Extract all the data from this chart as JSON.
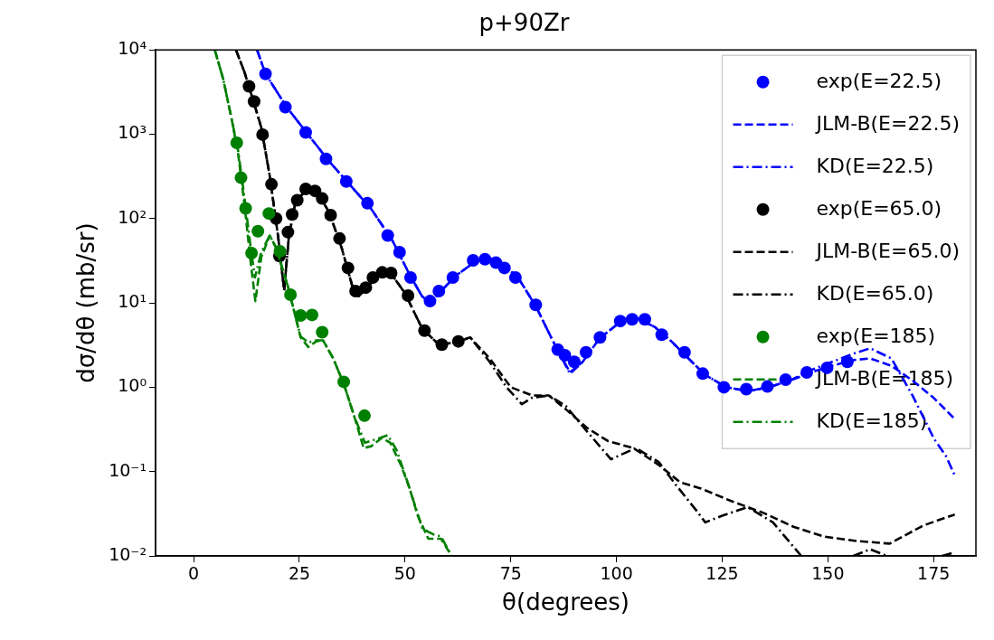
{
  "chart_data": {
    "type": "line",
    "title": "p+90Zr",
    "xlabel": "θ(degrees)",
    "ylabel": "dσ/dθ (mb/sr)",
    "log": "y",
    "legend": "top right",
    "xlim": [
      -9,
      185
    ],
    "xticks": [
      0,
      25,
      50,
      75,
      100,
      125,
      150,
      175
    ],
    "ylim": [
      0.01,
      10000
    ],
    "yticks": [
      {
        "value": 0.01,
        "label": "10⁻²"
      },
      {
        "value": 0.1,
        "label": "10⁻¹"
      },
      {
        "value": 1,
        "label": "10⁰"
      },
      {
        "value": 10,
        "label": "10¹"
      },
      {
        "value": 100,
        "label": "10²"
      },
      {
        "value": 1000,
        "label": "10³"
      },
      {
        "value": 10000,
        "label": "10⁴"
      }
    ],
    "series": [
      {
        "name": "exp(E=22.5)",
        "type": "scatter",
        "marker": "circle",
        "color": "#0000ff",
        "x": [
          17.0,
          21.7,
          26.5,
          31.3,
          36.1,
          41.1,
          45.9,
          48.7,
          51.3,
          55.9,
          58.0,
          61.3,
          66.1,
          68.9,
          71.5,
          73.5,
          76.1,
          80.9,
          86.1,
          87.8,
          90.0,
          92.8,
          96.1,
          100.9,
          103.7,
          106.7,
          110.7,
          116.1,
          120.4,
          125.4,
          130.7,
          135.7,
          140.0,
          145.0,
          149.8,
          154.6
        ],
        "values": [
          5200,
          2100,
          1050,
          510,
          275,
          152,
          63,
          40,
          20,
          10.5,
          13.8,
          20,
          32,
          33,
          30,
          26,
          20,
          9.5,
          2.8,
          2.4,
          2.0,
          2.6,
          3.9,
          6.1,
          6.4,
          6.4,
          4.2,
          2.6,
          1.45,
          1.0,
          0.95,
          1.02,
          1.23,
          1.5,
          1.7,
          2.0
        ]
      },
      {
        "name": "JLM-B(E=22.5)",
        "line_style": "dashed",
        "marker": "none",
        "color": "#0000ff",
        "x": [
          15,
          17,
          22,
          27,
          32,
          37,
          42,
          47,
          51,
          54,
          56,
          58,
          62,
          67,
          70,
          73,
          77,
          81,
          85,
          89,
          92,
          96,
          101,
          105,
          109,
          113,
          117,
          121,
          126,
          131,
          136,
          141,
          146,
          151,
          156,
          160,
          165,
          170,
          175,
          180
        ],
        "values": [
          10000,
          5200,
          2100,
          1000,
          480,
          250,
          130,
          55,
          22,
          12,
          10,
          13,
          21,
          32,
          34,
          30,
          19,
          9,
          3.5,
          1.5,
          2,
          3.8,
          6,
          6.5,
          5.2,
          3.5,
          2.2,
          1.4,
          1.0,
          0.9,
          1.0,
          1.2,
          1.5,
          1.8,
          2.1,
          2.2,
          1.8,
          1.2,
          0.75,
          0.42
        ]
      },
      {
        "name": "KD(E=22.5)",
        "line_style": "dashdot",
        "marker": "none",
        "color": "#0000ff",
        "x": [
          15,
          17,
          22,
          27,
          32,
          37,
          42,
          47,
          51,
          54,
          56,
          58,
          62,
          67,
          70,
          73,
          77,
          81,
          85,
          89,
          92,
          96,
          101,
          105,
          109,
          113,
          117,
          121,
          126,
          131,
          136,
          141,
          146,
          151,
          156,
          160,
          165,
          170,
          175,
          178,
          180
        ],
        "values": [
          10000,
          5200,
          2100,
          1000,
          480,
          250,
          130,
          55,
          22,
          12,
          10,
          13,
          21,
          32,
          34,
          30,
          19,
          9,
          3.5,
          1.45,
          2,
          3.8,
          6,
          6.5,
          5.2,
          3.5,
          2.2,
          1.4,
          1.0,
          0.9,
          1.0,
          1.2,
          1.6,
          2.0,
          2.5,
          2.9,
          2.2,
          0.8,
          0.25,
          0.15,
          0.09
        ]
      },
      {
        "name": "exp(E=65.0)",
        "type": "scatter",
        "marker": "circle",
        "color": "#000000",
        "x": [
          13.1,
          14.3,
          16.3,
          18.4,
          19.5,
          20.3,
          22.3,
          23.3,
          24.5,
          26.5,
          28.7,
          30.4,
          32.4,
          34.5,
          36.5,
          38.3,
          40.7,
          42.4,
          44.6,
          46.7,
          50.7,
          54.6,
          58.7,
          62.6
        ],
        "values": [
          3700,
          2450,
          990,
          255,
          100,
          36,
          69,
          112,
          165,
          225,
          213,
          173,
          110,
          58,
          26,
          13.8,
          15.2,
          20,
          23,
          22.6,
          12.2,
          4.7,
          3.2,
          3.5
        ]
      },
      {
        "name": "JLM-B(E=65.0)",
        "line_style": "dashed",
        "marker": "none",
        "color": "#000000",
        "x": [
          10,
          12,
          14,
          16,
          18,
          20,
          21.4,
          22.5,
          24,
          26.5,
          29,
          32,
          35,
          37.5,
          39,
          41,
          44,
          46.5,
          50,
          54,
          58,
          62,
          65.4,
          70,
          75,
          80,
          84,
          88,
          93,
          98,
          104,
          110,
          115,
          120,
          127,
          135,
          142,
          149,
          157,
          164.6,
          172.6,
          180
        ],
        "values": [
          10000,
          5500,
          2600,
          1200,
          320,
          60,
          14,
          60,
          150,
          220,
          215,
          120,
          45,
          16,
          12,
          15,
          23,
          23,
          13,
          5,
          3.2,
          3.4,
          3.9,
          2.2,
          1.0,
          0.8,
          0.8,
          0.55,
          0.33,
          0.23,
          0.19,
          0.12,
          0.075,
          0.063,
          0.045,
          0.032,
          0.022,
          0.017,
          0.015,
          0.014,
          0.023,
          0.031
        ]
      },
      {
        "name": "KD(E=65.0)",
        "line_style": "dashdot",
        "marker": "none",
        "color": "#000000",
        "x": [
          10,
          12,
          14,
          16,
          18,
          20,
          21.4,
          22.5,
          24,
          26.5,
          29,
          32,
          35,
          37.5,
          39,
          41,
          44,
          46.5,
          50,
          54,
          58,
          62,
          65.4,
          70,
          74,
          77.6,
          80,
          84,
          88,
          93,
          98.7,
          104.6,
          110,
          114,
          119,
          121,
          125,
          131,
          137,
          143.7,
          150,
          156,
          160,
          164,
          170,
          177,
          180
        ],
        "values": [
          10000,
          5500,
          2600,
          1200,
          320,
          60,
          14,
          60,
          150,
          220,
          215,
          120,
          45,
          16,
          12,
          15,
          23,
          23,
          13,
          5,
          3.2,
          3.4,
          3.9,
          2.0,
          1.0,
          0.63,
          0.75,
          0.8,
          0.6,
          0.3,
          0.14,
          0.19,
          0.13,
          0.07,
          0.034,
          0.025,
          0.03,
          0.038,
          0.025,
          0.01,
          null,
          0.01,
          0.012,
          0.01,
          null,
          0.01,
          0.011
        ]
      },
      {
        "name": "exp(E=185)",
        "type": "scatter",
        "marker": "circle",
        "color": "#008000",
        "x": [
          10.2,
          11.2,
          12.3,
          13.7,
          15.2,
          17.8,
          20.4,
          22.9,
          25.3,
          28.0,
          30.4,
          35.5,
          40.4
        ],
        "values": [
          790,
          305,
          132,
          39,
          71,
          115,
          41,
          12.5,
          7.1,
          7.2,
          4.5,
          1.16,
          0.46
        ]
      },
      {
        "name": "JLM-B(E=185)",
        "line_style": "dashed",
        "marker": "none",
        "color": "#008000",
        "x": [
          5,
          7,
          9,
          10.5,
          12,
          13.5,
          14.6,
          16,
          18,
          19.5,
          22.3,
          25.3,
          27.1,
          29,
          30.6,
          33,
          35.5,
          38,
          40.2,
          42,
          44.5,
          46.5,
          49,
          51,
          53,
          55.5,
          58.5,
          61
        ],
        "values": [
          10000,
          4500,
          1500,
          600,
          150,
          30,
          10.5,
          35,
          63,
          45,
          15.6,
          3.9,
          3.0,
          3.5,
          3.6,
          2.2,
          1.1,
          0.45,
          0.19,
          0.2,
          0.25,
          0.22,
          0.12,
          0.065,
          0.03,
          0.016,
          0.016,
          0.01
        ]
      },
      {
        "name": "KD(E=185)",
        "line_style": "dashdot",
        "marker": "none",
        "color": "#008000",
        "x": [
          5,
          7,
          9,
          10.5,
          12,
          13.5,
          14.5,
          16,
          18,
          19.5,
          22.3,
          25.3,
          27.1,
          29,
          30.6,
          33,
          35.5,
          38,
          40.5,
          43,
          45.9,
          48,
          50.7,
          54.1,
          56.7,
          58.5,
          61
        ],
        "values": [
          10000,
          4500,
          1500,
          650,
          180,
          45,
          20,
          40,
          63,
          45,
          15.6,
          4.0,
          3.4,
          3.6,
          3.6,
          2.2,
          1.1,
          0.45,
          0.22,
          0.24,
          0.27,
          0.18,
          0.072,
          0.021,
          0.018,
          0.017,
          0.01
        ]
      }
    ]
  }
}
